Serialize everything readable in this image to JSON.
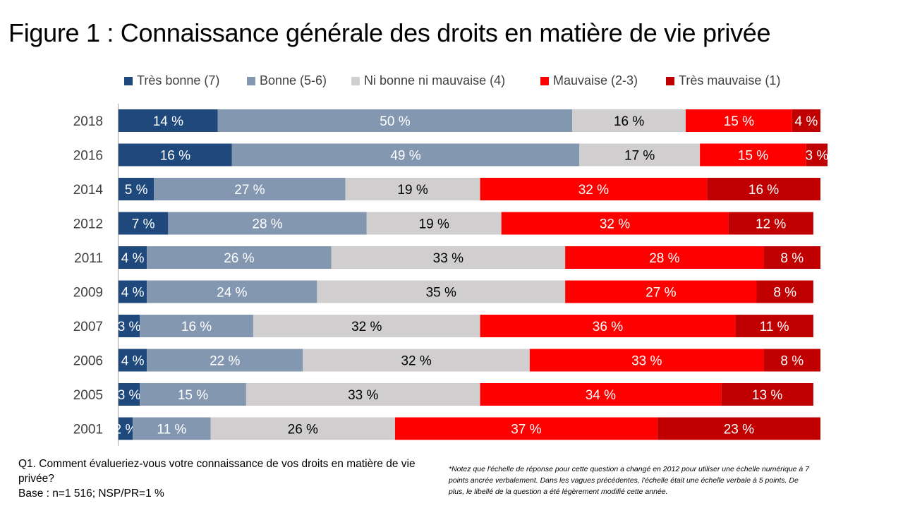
{
  "title": "Figure 1 : Connaissance générale des droits en matière de vie privée",
  "chart_data": {
    "type": "bar",
    "orientation": "horizontal",
    "stacked": true,
    "title": "Figure 1 : Connaissance générale des droits en matière de vie privée",
    "xlabel": "",
    "ylabel": "",
    "xlim": [
      0,
      100
    ],
    "legend_position": "top",
    "categories": [
      "2018",
      "2016",
      "2014",
      "2012",
      "2011",
      "2009",
      "2007",
      "2006",
      "2005",
      "2001"
    ],
    "series": [
      {
        "name": "Très bonne (7)",
        "color": "#1F497D",
        "label_color": "#FFFFFF",
        "values": [
          14,
          16,
          5,
          7,
          4,
          4,
          3,
          4,
          3,
          2
        ]
      },
      {
        "name": "Bonne (5-6)",
        "color": "#8497B0",
        "label_color": "#FFFFFF",
        "values": [
          50,
          49,
          27,
          28,
          26,
          24,
          16,
          22,
          15,
          11
        ]
      },
      {
        "name": "Ni bonne ni mauvaise (4)",
        "color": "#D0CECE",
        "label_color": "#000000",
        "values": [
          16,
          17,
          19,
          19,
          33,
          35,
          32,
          32,
          33,
          26
        ]
      },
      {
        "name": "Mauvaise (2-3)",
        "color": "#FF0000",
        "label_color": "#FFFFFF",
        "values": [
          15,
          15,
          32,
          32,
          28,
          27,
          36,
          33,
          34,
          37
        ]
      },
      {
        "name": "Très mauvaise (1)",
        "color": "#C00000",
        "label_color": "#FFFFFF",
        "values": [
          4,
          3,
          16,
          12,
          8,
          8,
          11,
          8,
          13,
          23
        ]
      }
    ],
    "value_suffix": " %"
  },
  "footnote": {
    "question": "Q1. Comment évalueriez-vous votre connaissance de vos droits en matière de vie privée?",
    "base": "Base : n=1 516; NSP/PR=1 %",
    "note": "*Notez que l'échelle de réponse pour cette question a changé en 2012 pour utiliser une échelle numérique à 7 points ancrée verbalement. Dans les vagues précédentes, l'échelle était une échelle verbale à 5 points. De plus, le libellé de la question a été légèrement modifié cette année."
  }
}
